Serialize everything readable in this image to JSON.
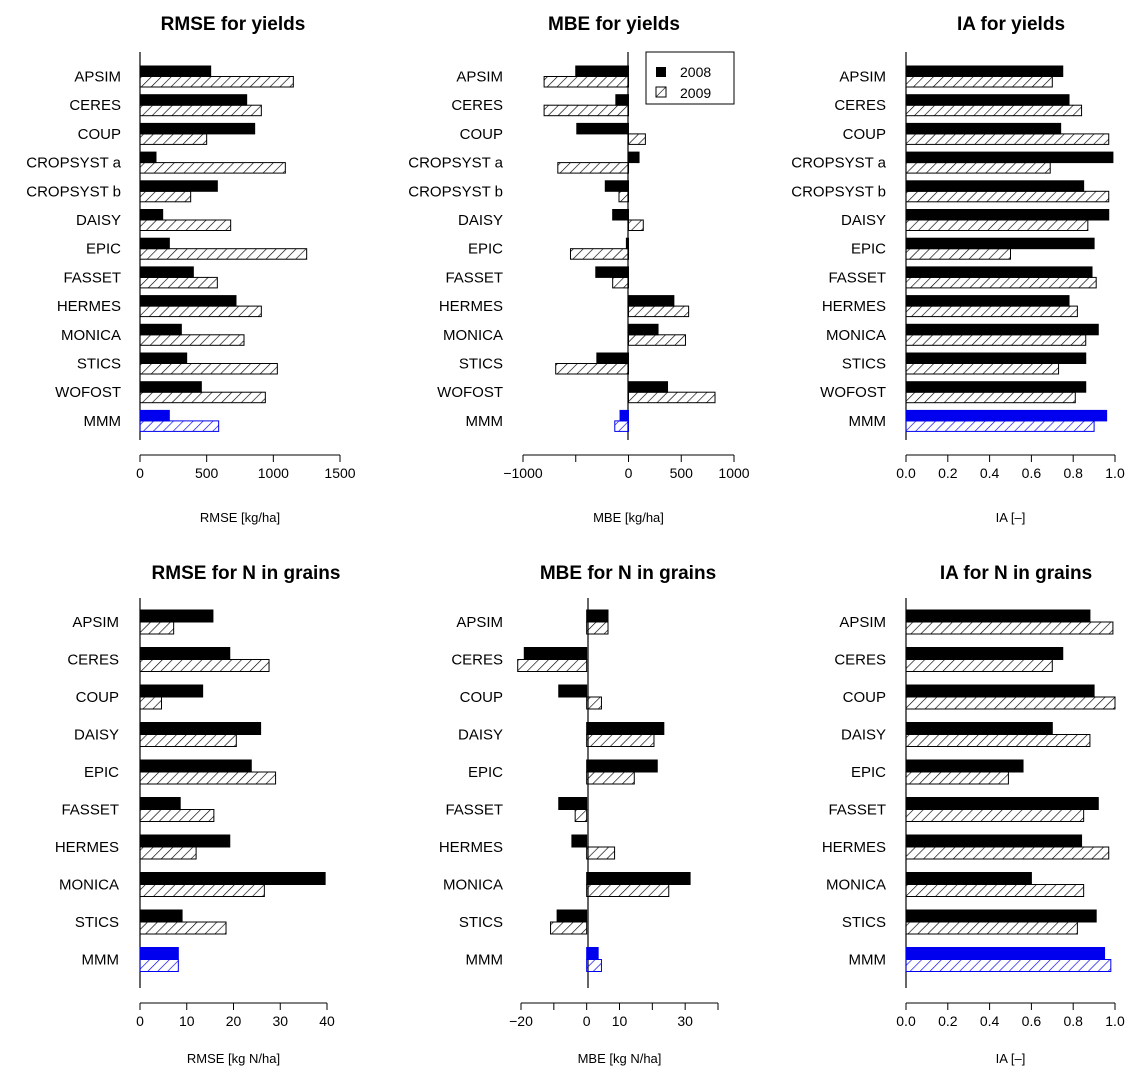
{
  "legend": {
    "entries": [
      "2008",
      "2009"
    ]
  },
  "colors": {
    "bar_2008": "#000000",
    "bar_2009_hatch": "#000000",
    "mmm_highlight": "#0000ee",
    "background": "#ffffff"
  },
  "chart_data": [
    {
      "type": "bar",
      "orientation": "horizontal",
      "title": "RMSE for yields",
      "xlabel": "RMSE [kg/ha]",
      "categories": [
        "APSIM",
        "CERES",
        "COUP",
        "CROPSYST a",
        "CROPSYST b",
        "DAISY",
        "EPIC",
        "FASSET",
        "HERMES",
        "MONICA",
        "STICS",
        "WOFOST",
        "MMM"
      ],
      "series": [
        {
          "name": "2008",
          "values": [
            530,
            800,
            860,
            120,
            580,
            170,
            220,
            400,
            720,
            310,
            350,
            460,
            220
          ]
        },
        {
          "name": "2009",
          "values": [
            1150,
            910,
            500,
            1090,
            380,
            680,
            1250,
            580,
            910,
            780,
            1030,
            940,
            590
          ]
        }
      ],
      "xlim": [
        0,
        1500
      ],
      "xticks": [
        0,
        500,
        1000,
        1500
      ],
      "xtick_labels": [
        "0",
        "500",
        "1000",
        "1500"
      ],
      "grid": false,
      "legend": "none"
    },
    {
      "type": "bar",
      "orientation": "horizontal",
      "title": "MBE for yields",
      "xlabel": "MBE [kg/ha]",
      "categories": [
        "APSIM",
        "CERES",
        "COUP",
        "CROPSYST a",
        "CROPSYST b",
        "DAISY",
        "EPIC",
        "FASSET",
        "HERMES",
        "MONICA",
        "STICS",
        "WOFOST",
        "MMM"
      ],
      "series": [
        {
          "name": "2008",
          "values": [
            -500,
            -120,
            -490,
            100,
            -220,
            -150,
            -20,
            -310,
            430,
            280,
            -300,
            370,
            -80
          ]
        },
        {
          "name": "2009",
          "values": [
            -800,
            -800,
            160,
            -670,
            -90,
            140,
            -550,
            -150,
            570,
            540,
            -690,
            820,
            -130
          ]
        }
      ],
      "xlim": [
        -1000,
        1000
      ],
      "xticks": [
        -1000,
        -500,
        0,
        500,
        1000
      ],
      "xtick_labels": [
        "−1000",
        "",
        "0",
        "500",
        "1000"
      ],
      "grid": false,
      "legend": "top-right"
    },
    {
      "type": "bar",
      "orientation": "horizontal",
      "title": "IA for yields",
      "xlabel": "IA [–]",
      "categories": [
        "APSIM",
        "CERES",
        "COUP",
        "CROPSYST a",
        "CROPSYST b",
        "DAISY",
        "EPIC",
        "FASSET",
        "HERMES",
        "MONICA",
        "STICS",
        "WOFOST",
        "MMM"
      ],
      "series": [
        {
          "name": "2008",
          "values": [
            0.75,
            0.78,
            0.74,
            0.99,
            0.85,
            0.97,
            0.9,
            0.89,
            0.78,
            0.92,
            0.86,
            0.86,
            0.96
          ]
        },
        {
          "name": "2009",
          "values": [
            0.7,
            0.84,
            0.97,
            0.69,
            0.97,
            0.87,
            0.5,
            0.91,
            0.82,
            0.86,
            0.73,
            0.81,
            0.9
          ]
        }
      ],
      "xlim": [
        0,
        1
      ],
      "xticks": [
        0,
        0.2,
        0.4,
        0.6,
        0.8,
        1.0
      ],
      "xtick_labels": [
        "0.0",
        "0.2",
        "0.4",
        "0.6",
        "0.8",
        "1.0"
      ],
      "grid": false,
      "legend": "none"
    },
    {
      "type": "bar",
      "orientation": "horizontal",
      "title": "RMSE for N in grains",
      "xlabel": "RMSE [kg N/ha]",
      "categories": [
        "APSIM",
        "CERES",
        "COUP",
        "DAISY",
        "EPIC",
        "FASSET",
        "HERMES",
        "MONICA",
        "STICS",
        "MMM"
      ],
      "series": [
        {
          "name": "2008",
          "values": [
            15.6,
            19.2,
            13.4,
            25.8,
            23.8,
            8.6,
            19.2,
            39.6,
            9.0,
            8.2
          ]
        },
        {
          "name": "2009",
          "values": [
            7.2,
            27.6,
            4.6,
            20.6,
            29.0,
            15.8,
            12.0,
            26.6,
            18.4,
            8.2
          ]
        }
      ],
      "xlim": [
        0,
        40
      ],
      "xticks": [
        0,
        10,
        20,
        30,
        40
      ],
      "xtick_labels": [
        "0",
        "10",
        "20",
        "30",
        "40"
      ],
      "grid": false,
      "legend": "none"
    },
    {
      "type": "bar",
      "orientation": "horizontal",
      "title": "MBE for N in grains",
      "xlabel": "MBE [kg N/ha]",
      "categories": [
        "APSIM",
        "CERES",
        "COUP",
        "DAISY",
        "EPIC",
        "FASSET",
        "HERMES",
        "MONICA",
        "STICS",
        "MMM"
      ],
      "series": [
        {
          "name": "2008",
          "values": [
            6.5,
            -19,
            -8.5,
            23.5,
            21.5,
            -8.5,
            -4.5,
            31.5,
            -9,
            3.5
          ]
        },
        {
          "name": "2009",
          "values": [
            6.5,
            -21,
            4.5,
            20.5,
            14.5,
            -3.5,
            8.5,
            25,
            -11,
            4.5
          ]
        }
      ],
      "xlim": [
        -20,
        40
      ],
      "xticks": [
        -20,
        -10,
        0,
        10,
        20,
        30,
        40
      ],
      "xtick_labels": [
        "−20",
        "",
        "0",
        "10",
        "",
        "30",
        ""
      ],
      "grid": false,
      "legend": "none"
    },
    {
      "type": "bar",
      "orientation": "horizontal",
      "title": "IA for N in grains",
      "xlabel": "IA [–]",
      "categories": [
        "APSIM",
        "CERES",
        "COUP",
        "DAISY",
        "EPIC",
        "FASSET",
        "HERMES",
        "MONICA",
        "STICS",
        "MMM"
      ],
      "series": [
        {
          "name": "2008",
          "values": [
            0.88,
            0.75,
            0.9,
            0.7,
            0.56,
            0.92,
            0.84,
            0.6,
            0.91,
            0.95
          ]
        },
        {
          "name": "2009",
          "values": [
            0.99,
            0.7,
            1.0,
            0.88,
            0.49,
            0.85,
            0.97,
            0.85,
            0.82,
            0.98
          ]
        }
      ],
      "xlim": [
        0,
        1
      ],
      "xticks": [
        0,
        0.2,
        0.4,
        0.6,
        0.8,
        1.0
      ],
      "xtick_labels": [
        "0.0",
        "0.2",
        "0.4",
        "0.6",
        "0.8",
        "1.0"
      ],
      "grid": false,
      "legend": "none"
    }
  ]
}
